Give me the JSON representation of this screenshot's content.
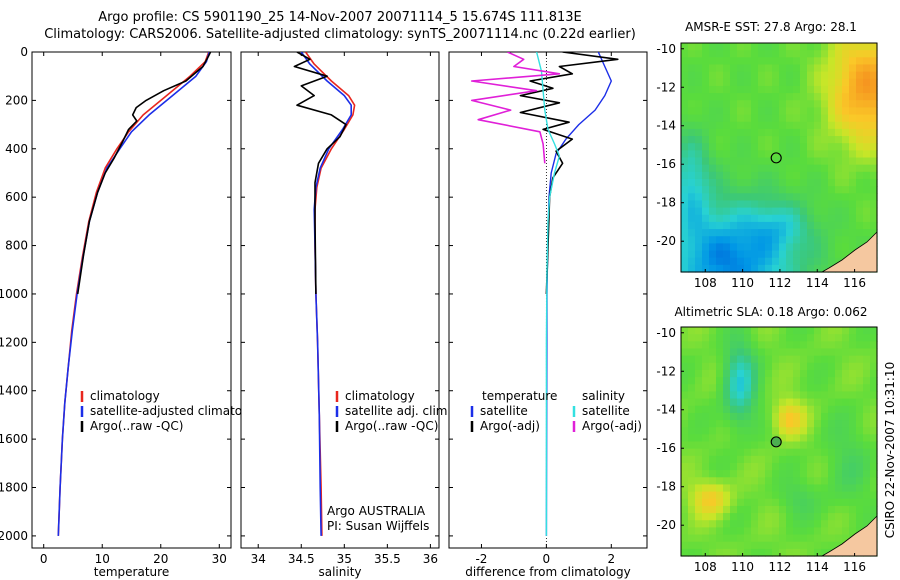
{
  "header": {
    "line1": "Argo profile: CS 5901190_25 14-Nov-2007 20071114_5 15.674S 111.813E",
    "line2": "Climatology: CARS2006. Satellite-adjusted climatology: synTS_20071114.nc (0.22d earlier)"
  },
  "side_label": "CSIRO 22-Nov-2007 10:31:10",
  "colors": {
    "red": "#e8261e",
    "blue": "#1b2ee8",
    "black": "#000000",
    "cyan": "#33e0e0",
    "magenta": "#e020d8"
  },
  "chart_data": [
    {
      "type": "line",
      "xlabel": "temperature",
      "ylabel": "",
      "xlim": [
        -2,
        32
      ],
      "ylim": [
        2050,
        0
      ],
      "x_ticks": [
        0,
        10,
        20,
        30
      ],
      "y_ticks": [
        0,
        200,
        400,
        600,
        800,
        1000,
        1200,
        1400,
        1600,
        1800,
        2000
      ],
      "legend": {
        "placement": "lower-middle",
        "entries": [
          "climatology",
          "satellite-adjusted climatology",
          "Argo(..raw -QC)"
        ]
      },
      "series": [
        {
          "name": "climatology",
          "color": "red",
          "width": 1.6,
          "x": [
            28.2,
            27.6,
            25,
            21,
            17,
            14.5,
            12.5,
            10.5,
            9,
            7.7,
            6.6,
            5.6,
            4.8,
            4.2,
            3.6,
            3.2,
            2.8,
            2.5
          ],
          "y": [
            0,
            40,
            100,
            180,
            260,
            330,
            400,
            480,
            580,
            700,
            850,
            1000,
            1150,
            1300,
            1450,
            1600,
            1800,
            2000
          ]
        },
        {
          "name": "satellite-adjusted climatology",
          "color": "blue",
          "width": 1.6,
          "x": [
            28.3,
            27.8,
            26,
            22,
            18,
            15,
            13,
            10.8,
            9.2,
            7.8,
            6.7,
            5.7,
            4.9,
            4.2,
            3.6,
            3.2,
            2.8,
            2.5
          ],
          "y": [
            0,
            40,
            100,
            180,
            260,
            330,
            400,
            480,
            580,
            700,
            850,
            1000,
            1150,
            1300,
            1450,
            1600,
            1800,
            2000
          ]
        },
        {
          "name": "Argo(..raw -QC)",
          "color": "black",
          "width": 1.6,
          "x": [
            28.5,
            28.1,
            27.2,
            24.3,
            20.5,
            17.5,
            15.8,
            15.2,
            15.9,
            14.5,
            13.5,
            12,
            10.5,
            9.2,
            7.8,
            6.8,
            5.8
          ],
          "y": [
            0,
            20,
            60,
            120,
            160,
            200,
            230,
            260,
            285,
            320,
            370,
            440,
            500,
            580,
            700,
            840,
            1000
          ]
        }
      ]
    },
    {
      "type": "line",
      "xlabel": "salinity",
      "ylabel": "",
      "xlim": [
        33.8,
        36.1
      ],
      "ylim": [
        2050,
        0
      ],
      "x_ticks": [
        34,
        34.5,
        35,
        35.5,
        36
      ],
      "y_ticks": [
        0,
        200,
        400,
        600,
        800,
        1000,
        1200,
        1400,
        1600,
        1800,
        2000
      ],
      "legend": {
        "placement": "lower-middle",
        "entries": [
          "climatology",
          "satellite adj. clim.",
          "Argo(..raw -QC)"
        ]
      },
      "annotations": [
        "Argo AUSTRALIA",
        "PI: Susan Wijffels"
      ],
      "series": [
        {
          "name": "climatology",
          "color": "red",
          "width": 1.6,
          "x": [
            34.55,
            34.65,
            34.85,
            35.05,
            35.12,
            35.1,
            35,
            34.85,
            34.73,
            34.68,
            34.66,
            34.66,
            34.67,
            34.69,
            34.71,
            34.73,
            34.74
          ],
          "y": [
            0,
            50,
            120,
            180,
            220,
            260,
            320,
            400,
            480,
            560,
            650,
            800,
            1000,
            1200,
            1500,
            1800,
            2000
          ]
        },
        {
          "name": "satellite adj. clim.",
          "color": "blue",
          "width": 1.6,
          "x": [
            34.5,
            34.6,
            34.8,
            35.0,
            35.08,
            35.08,
            34.98,
            34.82,
            34.72,
            34.67,
            34.65,
            34.66,
            34.67,
            34.69,
            34.71,
            34.72,
            34.73
          ],
          "y": [
            0,
            50,
            120,
            180,
            220,
            260,
            320,
            400,
            480,
            560,
            650,
            800,
            1000,
            1200,
            1500,
            1800,
            2000
          ]
        },
        {
          "name": "Argo(..raw -QC)",
          "color": "black",
          "width": 1.6,
          "x": [
            34.45,
            34.6,
            34.42,
            34.8,
            34.5,
            34.65,
            34.45,
            34.85,
            35.02,
            34.95,
            34.8,
            34.7,
            34.66,
            34.66,
            34.67
          ],
          "y": [
            0,
            30,
            60,
            100,
            140,
            180,
            220,
            260,
            300,
            350,
            400,
            460,
            540,
            700,
            1000
          ]
        }
      ]
    },
    {
      "type": "line",
      "xlabel": "difference from climatology",
      "ylabel": "",
      "xlim": [
        -3,
        3.1
      ],
      "ylim": [
        2050,
        0
      ],
      "x_ticks": [
        -2,
        0,
        2
      ],
      "y_ticks": [
        0,
        200,
        400,
        600,
        800,
        1000,
        1200,
        1400,
        1600,
        1800,
        2000
      ],
      "legend": {
        "placement": "lower-middle",
        "headers": [
          "temperature",
          "salinity"
        ],
        "entries": [
          "satellite",
          "Argo(-adj)",
          "satellite",
          "Argo(-adj)"
        ]
      },
      "series": [
        {
          "name": "temperature satellite",
          "color": "blue",
          "width": 1.4,
          "x": [
            1.6,
            1.8,
            2.0,
            1.8,
            1.5,
            1.0,
            0.6,
            0.3,
            0.15,
            0.08,
            0.04,
            0.02,
            0.0
          ],
          "y": [
            0,
            60,
            120,
            180,
            240,
            300,
            360,
            420,
            500,
            600,
            800,
            1000,
            2000
          ]
        },
        {
          "name": "temperature Argo(-adj)",
          "color": "black",
          "width": 1.6,
          "x": [
            0.5,
            2.2,
            0.4,
            0.8,
            -0.5,
            0.2,
            -0.8,
            0.4,
            -0.8,
            0.7,
            -0.1,
            0.8,
            0.3,
            0.5,
            0.2,
            0.1,
            0.05,
            0.0
          ],
          "y": [
            0,
            30,
            60,
            90,
            120,
            150,
            180,
            210,
            250,
            290,
            320,
            360,
            410,
            460,
            520,
            600,
            800,
            1000
          ]
        },
        {
          "name": "salinity satellite",
          "color": "cyan",
          "width": 1.4,
          "x": [
            -0.3,
            -0.15,
            -0.1,
            -0.05,
            0.05,
            0.25,
            0.4,
            0.25,
            0.1,
            0.05,
            0.02,
            0.0,
            0.0
          ],
          "y": [
            0,
            80,
            160,
            240,
            320,
            380,
            430,
            500,
            600,
            700,
            900,
            1200,
            2000
          ]
        },
        {
          "name": "salinity Argo(-adj)",
          "color": "magenta",
          "width": 1.6,
          "x": [
            -1.2,
            -0.7,
            -1.0,
            0.4,
            -2.3,
            -0.3,
            -2.3,
            -1.1,
            -2.1,
            -0.2,
            -0.1,
            -0.05
          ],
          "y": [
            0,
            30,
            60,
            90,
            120,
            160,
            200,
            240,
            280,
            330,
            380,
            460
          ]
        }
      ]
    },
    {
      "type": "heatmap",
      "title": "AMSR-E SST: 27.8 Argo: 28.1",
      "xlim": [
        106.7,
        117.2
      ],
      "ylim": [
        -21.6,
        -9.7
      ],
      "x_ticks": [
        108,
        110,
        112,
        114,
        116
      ],
      "y_ticks": [
        -10,
        -12,
        -14,
        -16,
        -18,
        -20
      ],
      "marker": {
        "lon": 111.8,
        "lat": -15.67,
        "fill": "none"
      }
    },
    {
      "type": "heatmap",
      "title": "Altimetric SLA: 0.18 Argo: 0.062",
      "xlim": [
        106.7,
        117.2
      ],
      "ylim": [
        -21.6,
        -9.7
      ],
      "x_ticks": [
        108,
        110,
        112,
        114,
        116
      ],
      "y_ticks": [
        -10,
        -12,
        -14,
        -16,
        -18,
        -20
      ],
      "marker": {
        "lon": 111.8,
        "lat": -15.67,
        "fill": "#4caf50"
      }
    }
  ]
}
